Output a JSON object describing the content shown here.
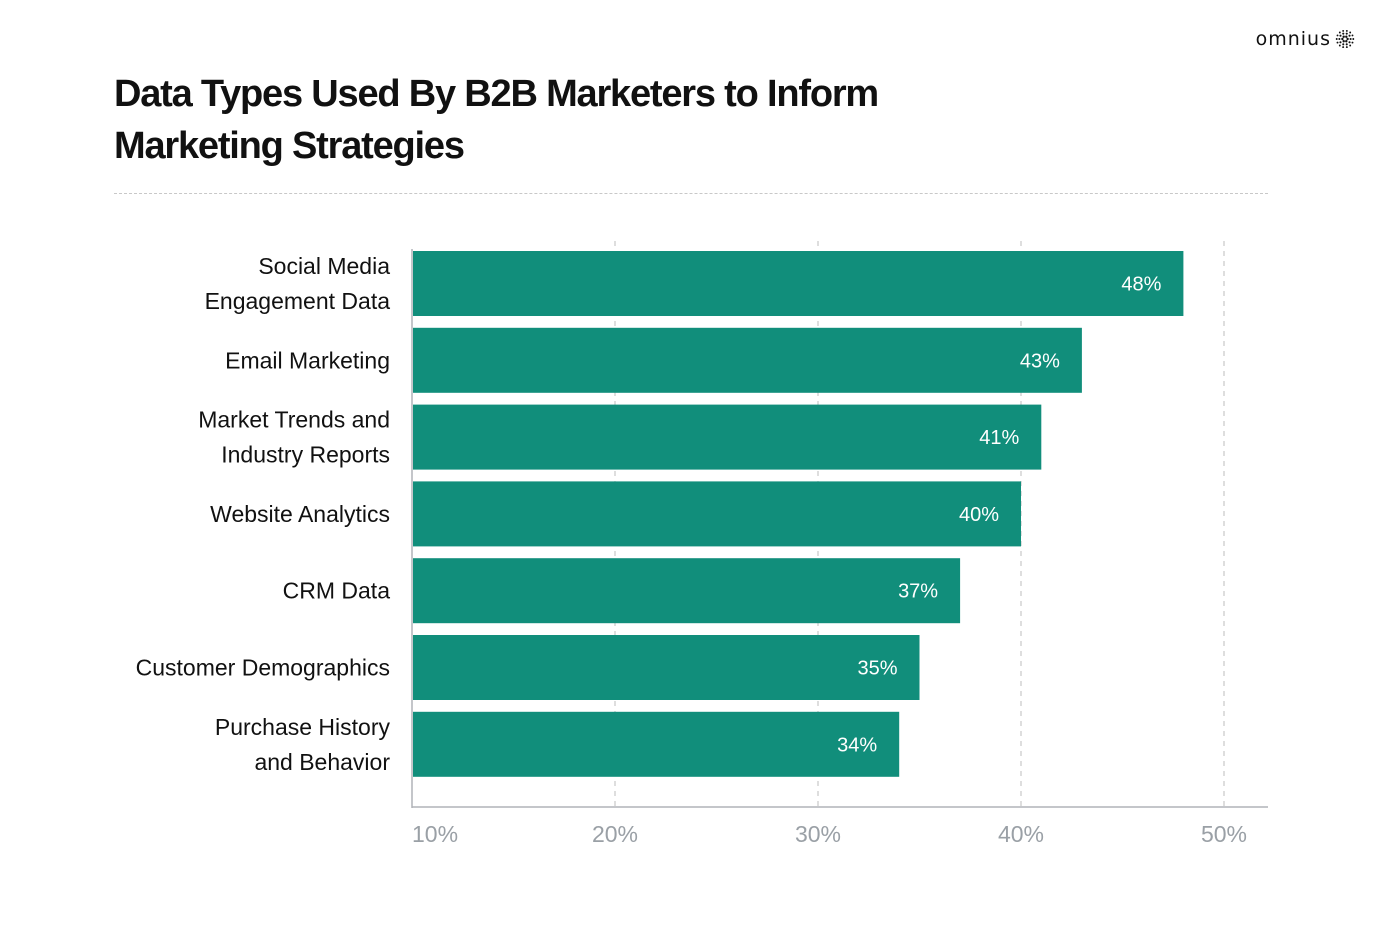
{
  "brand": {
    "name": "omnius",
    "icon": "sunburst-logo-icon"
  },
  "chart_data": {
    "type": "bar",
    "orientation": "horizontal",
    "title": "Data Types Used By B2B Marketers to Inform Marketing Strategies",
    "categories": [
      [
        "Social Media",
        "Engagement Data"
      ],
      [
        "Email Marketing"
      ],
      [
        "Market Trends and",
        "Industry Reports"
      ],
      [
        "Website Analytics"
      ],
      [
        "CRM Data"
      ],
      [
        "Customer Demographics"
      ],
      [
        "Purchase History",
        "and Behavior"
      ]
    ],
    "values": [
      48,
      43,
      41,
      40,
      37,
      35,
      34
    ],
    "value_labels": [
      "48%",
      "43%",
      "41%",
      "40%",
      "37%",
      "35%",
      "34%"
    ],
    "x_ticks": [
      "10%",
      "20%",
      "30%",
      "40%",
      "50%"
    ],
    "x_tick_values": [
      10,
      20,
      30,
      40,
      50
    ],
    "xlim": [
      10,
      50
    ],
    "grid": "vertical dashed",
    "bar_color": "#118e7b",
    "tick_color": "#9aa0a6",
    "grid_color": "#c8c8c8"
  }
}
